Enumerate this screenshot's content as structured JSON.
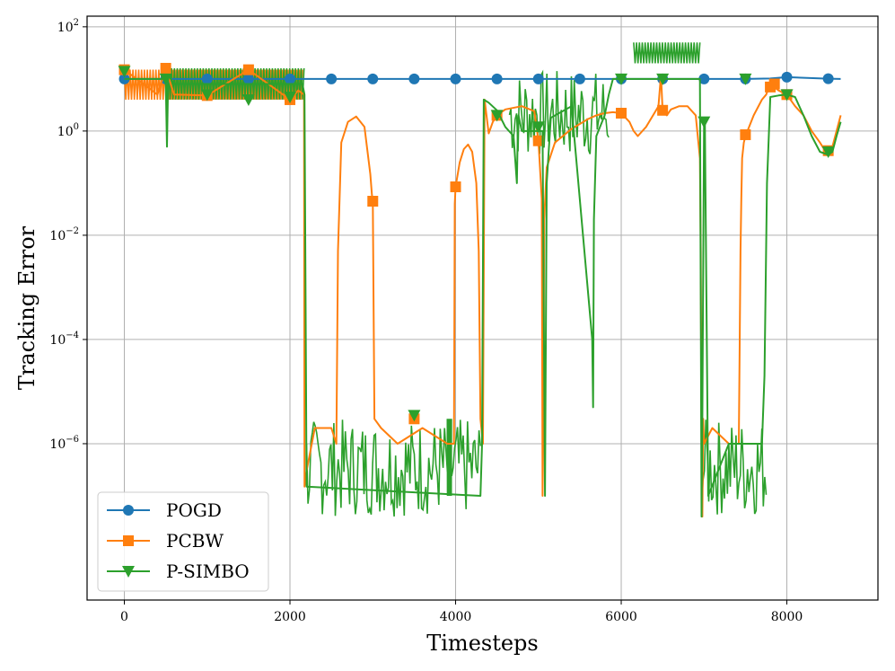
{
  "colors": {
    "pogd": "#1f77b4",
    "pcbw": "#ff7f0e",
    "psimbo": "#2ca02c",
    "grid": "#b0b0b0"
  },
  "chart_data": {
    "type": "line",
    "title": "",
    "xlabel": "Timesteps",
    "ylabel": "Tracking Error",
    "yscale": "log",
    "xlim": [
      -450,
      9100
    ],
    "ylim": [
      1e-09,
      160
    ],
    "grid": true,
    "legend_position": "lower-left",
    "x_ticks": [
      0,
      2000,
      4000,
      6000,
      8000
    ],
    "x_tick_labels": [
      "0",
      "2000",
      "4000",
      "6000",
      "8000"
    ],
    "y_ticks": [
      1e-06,
      0.0001,
      0.01,
      1,
      100
    ],
    "y_tick_labels": [
      {
        "base": "10",
        "exp": "−6"
      },
      {
        "base": "10",
        "exp": "−4"
      },
      {
        "base": "10",
        "exp": "−2"
      },
      {
        "base": "10",
        "exp": "0"
      },
      {
        "base": "10",
        "exp": "2"
      }
    ],
    "series": [
      {
        "name": "POGD",
        "color_key": "pogd",
        "marker": "circle",
        "x": [
          0,
          500,
          1000,
          1500,
          2000,
          2500,
          3000,
          3500,
          4000,
          4500,
          5000,
          5500,
          6000,
          6500,
          7000,
          7500,
          7800,
          8000,
          8500,
          8650
        ],
        "y": [
          10,
          10,
          10,
          10,
          10,
          10,
          10,
          10,
          10,
          10,
          10,
          10,
          10,
          10,
          10,
          10,
          10.2,
          10.8,
          10.1,
          10
        ],
        "markers_x": [
          0,
          500,
          1000,
          1500,
          2000,
          2500,
          3000,
          3500,
          4000,
          4500,
          5000,
          5500,
          6000,
          6500,
          7000,
          7500,
          8000,
          8500
        ],
        "markers_y": [
          10,
          10,
          10,
          10,
          10,
          10,
          10,
          10,
          10,
          10,
          10,
          10,
          10,
          10,
          10,
          10,
          10.8,
          10.1
        ]
      },
      {
        "name": "PCBW",
        "color_key": "pcbw",
        "marker": "square",
        "x": [
          0,
          400,
          500,
          600,
          1000,
          1500,
          2000,
          2100,
          2170,
          2175,
          2200,
          2300,
          2500,
          2560,
          2580,
          2620,
          2700,
          2800,
          2900,
          2970,
          2990,
          3000,
          3020,
          3100,
          3300,
          3600,
          3900,
          3980,
          3990,
          4000,
          4050,
          4100,
          4150,
          4200,
          4250,
          4280,
          4300,
          4330,
          4350,
          4400,
          4450,
          4500,
          4600,
          4800,
          4950,
          5000,
          5040,
          5050,
          5060,
          5070,
          5100,
          5200,
          5400,
          5600,
          5700,
          5800,
          5900,
          6000,
          6100,
          6150,
          6200,
          6300,
          6400,
          6450,
          6480,
          6500,
          6550,
          6600,
          6700,
          6800,
          6900,
          6950,
          6960,
          6970,
          6980,
          6990,
          7000,
          7100,
          7300,
          7420,
          7440,
          7450,
          7460,
          7480,
          7500,
          7600,
          7700,
          7750,
          7800,
          7900,
          8000,
          8100,
          8200,
          8300,
          8400,
          8450,
          8500,
          8550,
          8600,
          8650
        ],
        "y": [
          15,
          5,
          16,
          5,
          4.8,
          15,
          4,
          6,
          5,
          1.5e-07,
          3e-07,
          2e-06,
          2e-06,
          1e-06,
          0.005,
          0.6,
          1.5,
          1.9,
          1.2,
          0.15,
          0.06,
          0.045,
          3e-06,
          2e-06,
          1e-06,
          2e-06,
          1e-06,
          1e-06,
          0.04,
          0.085,
          0.25,
          0.45,
          0.55,
          0.4,
          0.1,
          0.005,
          3e-06,
          1e-06,
          4,
          0.9,
          1.5,
          2,
          2.6,
          3,
          2.4,
          0.65,
          0.05,
          1e-07,
          3e-06,
          0.02,
          0.2,
          0.6,
          1.1,
          1.7,
          2,
          2.2,
          2.3,
          2.2,
          1.5,
          1,
          0.8,
          1.2,
          2.2,
          3,
          12,
          2.5,
          2,
          2.6,
          3,
          3,
          2,
          0.3,
          0.005,
          1e-06,
          4e-08,
          3e-06,
          1e-06,
          2e-06,
          1e-06,
          1e-06,
          0.005,
          0.05,
          0.3,
          0.6,
          0.8,
          2,
          4,
          5,
          8,
          6,
          5,
          3,
          2,
          1,
          0.6,
          0.45,
          0.42,
          0.5,
          1,
          2
        ],
        "markers_x": [
          0,
          500,
          1000,
          1500,
          2000,
          3000,
          3500,
          4000,
          4500,
          5000,
          6000,
          6500,
          7500,
          7800,
          7850,
          8000,
          8500
        ],
        "markers_y": [
          15,
          16,
          4.8,
          15,
          4,
          0.045,
          3e-06,
          0.085,
          2,
          0.65,
          2.2,
          2.5,
          0.85,
          7,
          8,
          5,
          0.42
        ]
      },
      {
        "name": "P-SIMBO",
        "color_key": "psimbo",
        "marker": "triangle-down",
        "x": [
          0,
          480,
          500,
          515,
          530,
          600,
          1000,
          1500,
          2000,
          2150,
          2175,
          2200,
          4300,
          4320,
          4340,
          4400,
          4500,
          4600,
          4700,
          4740,
          4750,
          4760,
          4800,
          4850,
          5050,
          5080,
          5100,
          5150,
          5400,
          5650,
          5660,
          5670,
          5700,
          5800,
          5850,
          5900,
          6000,
          6100,
          6150,
          6200,
          6250,
          6400,
          6500,
          6800,
          6900,
          6950,
          6970,
          6980,
          7000,
          7010,
          7050,
          7300,
          7700,
          7730,
          7760,
          7800,
          7900,
          8000,
          8100,
          8200,
          8300,
          8400,
          8500,
          8550,
          8600,
          8650
        ],
        "y": [
          10,
          10,
          10,
          0.5,
          12,
          8,
          8,
          8,
          8,
          8,
          5,
          1.5e-07,
          1e-07,
          1e-06,
          4,
          3.5,
          2.5,
          1.2,
          0.8,
          0.1,
          0.8,
          2,
          1,
          1,
          1,
          1e-07,
          0.1,
          1.8,
          3,
          0.0001,
          5e-06,
          0.02,
          0.8,
          2,
          5,
          10,
          10,
          10,
          10,
          10,
          10,
          10,
          10,
          10,
          10,
          10,
          4e-08,
          3e-06,
          1.5,
          1.5,
          1e-07,
          1e-06,
          1e-06,
          2e-05,
          0.1,
          4.5,
          4.8,
          5,
          4.5,
          2,
          0.8,
          0.4,
          0.35,
          0.4,
          0.8,
          1.5
        ],
        "markers_x": [
          0,
          500,
          1000,
          1500,
          2000,
          3500,
          4500,
          5000,
          6000,
          6500,
          7000,
          7500,
          8000,
          8500
        ],
        "markers_y": [
          14,
          10,
          5,
          4,
          4.5,
          3.5e-06,
          2,
          1.2,
          10,
          10,
          1.5,
          10,
          5,
          0.4
        ]
      }
    ],
    "bands": [
      {
        "series": "PCBW",
        "x_start": 0,
        "x_end": 2150,
        "y_low": 4,
        "y_high": 15
      },
      {
        "series": "P-SIMBO",
        "x_start": 500,
        "x_end": 2170,
        "y_low": 4,
        "y_high": 16
      },
      {
        "series": "P-SIMBO",
        "x_start": 3900,
        "x_end": 3950,
        "y_low": 1e-07,
        "y_high": 3e-06
      },
      {
        "series": "P-SIMBO",
        "x_start": 4650,
        "x_end": 5850,
        "y_low": 0.3,
        "y_high": 15
      },
      {
        "series": "P-SIMBO",
        "x_start": 6150,
        "x_end": 6950,
        "y_low": 20,
        "y_high": 50
      },
      {
        "series": "P-SIMBO",
        "x_start": 2200,
        "x_end": 4300,
        "y_low": 4e-08,
        "y_high": 3e-06
      },
      {
        "series": "P-SIMBO",
        "x_start": 6970,
        "x_end": 7750,
        "y_low": 4e-08,
        "y_high": 3e-06
      }
    ]
  }
}
